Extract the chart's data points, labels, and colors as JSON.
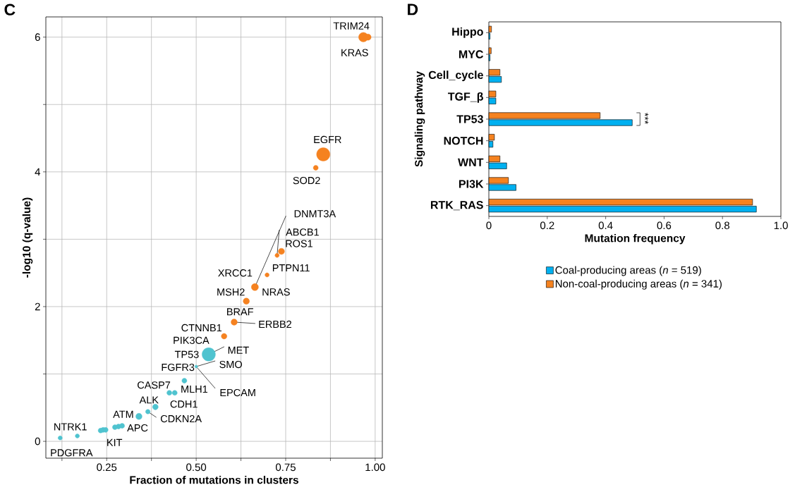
{
  "chart_data": [
    {
      "type": "bubble",
      "title": "C",
      "xlabel": "Fraction of mutations in clusters",
      "ylabel": "-log10 (q-value)",
      "xlim": [
        0.08,
        1.02
      ],
      "ylim": [
        -0.25,
        6.3
      ],
      "xticks": [
        {
          "value": 0.125,
          "label": null
        },
        0.25,
        {
          "value": 0.375,
          "label": null
        },
        {
          "value": 0.5,
          "label": "0.50"
        },
        {
          "value": 0.625,
          "label": null
        },
        0.75,
        {
          "value": 0.875,
          "label": null
        },
        {
          "value": 1,
          "label": "1.00"
        }
      ],
      "yticks": [
        0,
        {
          "value": 1,
          "label": null
        },
        2,
        {
          "value": 3,
          "label": null
        },
        4,
        {
          "value": 5,
          "label": null
        },
        6
      ],
      "grid": true,
      "series": [
        {
          "color": "#f58220",
          "x": [
            0.967,
            0.98,
            0.855,
            0.834,
            0.664,
            0.726,
            0.738,
            0.698,
            0.64,
            0.606,
            0.578
          ],
          "values": [
            6.0,
            6.0,
            4.26,
            4.06,
            2.29,
            2.76,
            2.82,
            2.47,
            2.08,
            1.77,
            1.56
          ],
          "sizes": [
            0.5,
            0.22,
            1,
            0.14,
            0.28,
            0.1,
            0.22,
            0.1,
            0.22,
            0.22,
            0.18
          ]
        },
        {
          "color": "#4fc3cf",
          "x": [
            0.535,
            0.5,
            0.425,
            0.467,
            0.44,
            0.386,
            0.365,
            0.34,
            0.283,
            0.24,
            0.168,
            0.12,
            0.273,
            0.293,
            0.233,
            0.247
          ],
          "values": [
            1.29,
            1.11,
            0.72,
            0.9,
            0.72,
            0.51,
            0.44,
            0.37,
            0.22,
            0.17,
            0.08,
            0.05,
            0.21,
            0.23,
            0.16,
            0.17
          ],
          "sizes": [
            1,
            0.044,
            0.14,
            0.14,
            0.14,
            0.18,
            0.12,
            0.22,
            0.14,
            0.14,
            0.1,
            0.1,
            0.14,
            0.14,
            0.14,
            0.14
          ]
        }
      ],
      "annotations": [
        {
          "text": "TRIM24",
          "x": 0.967,
          "y": 6.0
        },
        {
          "text": "KRAS",
          "x": 0.98,
          "y": 6.0
        },
        {
          "text": "EGFR",
          "x": 0.855,
          "y": 4.26
        },
        {
          "text": "SOD2",
          "x": 0.834,
          "y": 4.06
        },
        {
          "text": "DNMT3A",
          "x": 0.664,
          "y": 2.29
        },
        {
          "text": "ABCB1",
          "x": 0.726,
          "y": 2.76
        },
        {
          "text": "ROS1",
          "x": 0.738,
          "y": 2.82
        },
        {
          "text": "XRCC1",
          "x": 0.664,
          "y": 2.29
        },
        {
          "text": "PTPN11",
          "x": 0.698,
          "y": 2.47
        },
        {
          "text": "MSH2",
          "x": 0.64,
          "y": 2.08
        },
        {
          "text": "NRAS",
          "x": 0.664,
          "y": 2.29
        },
        {
          "text": "BRAF",
          "x": 0.64,
          "y": 2.08
        },
        {
          "text": "ERBB2",
          "x": 0.606,
          "y": 1.77
        },
        {
          "text": "CTNNB1",
          "x": 0.578,
          "y": 1.56
        },
        {
          "text": "PIK3CA",
          "x": 0.535,
          "y": 1.29
        },
        {
          "text": "TP53",
          "x": 0.535,
          "y": 1.29
        },
        {
          "text": "MET",
          "x": 0.535,
          "y": 1.29
        },
        {
          "text": "SMO",
          "x": 0.5,
          "y": 1.11
        },
        {
          "text": "FGFR3",
          "x": 0.5,
          "y": 1.11
        },
        {
          "text": "EPCAM",
          "x": 0.5,
          "y": 1.11
        },
        {
          "text": "CASP7",
          "x": 0.425,
          "y": 0.72
        },
        {
          "text": "MLH1",
          "x": 0.467,
          "y": 0.9
        },
        {
          "text": "CDH1",
          "x": 0.44,
          "y": 0.72
        },
        {
          "text": "ALK",
          "x": 0.386,
          "y": 0.51
        },
        {
          "text": "CDKN2A",
          "x": 0.365,
          "y": 0.44
        },
        {
          "text": "ATM",
          "x": 0.34,
          "y": 0.37
        },
        {
          "text": "APC",
          "x": 0.283,
          "y": 0.22
        },
        {
          "text": "KIT",
          "x": 0.24,
          "y": 0.17
        },
        {
          "text": "NTRK1",
          "x": 0.168,
          "y": 0.08
        },
        {
          "text": "PDGFRA",
          "x": 0.12,
          "y": 0.05
        }
      ]
    },
    {
      "type": "bar",
      "orientation": "horizontal",
      "title": "D",
      "xlabel": "Mutation frequency",
      "ylabel": "Signaling pathway",
      "categories": [
        "Hippo",
        "MYC",
        "Cell_cycle",
        "TGF_β",
        "TP53",
        "NOTCH",
        "WNT",
        "PI3K",
        "RTK_RAS"
      ],
      "xlim": [
        0,
        1
      ],
      "xticks": [
        0,
        0.2,
        0.4,
        0.6,
        0.8,
        {
          "value": 1,
          "label": "1.0"
        }
      ],
      "legend": "bottom",
      "series": [
        {
          "name": "Coal-producing areas (*n* = 519)",
          "color": "#00b0f0",
          "values": [
            0.004,
            0.004,
            0.043,
            0.024,
            0.491,
            0.014,
            0.061,
            0.093,
            0.916
          ]
        },
        {
          "name": "Non-coal-producing areas (*n* = 341)",
          "color": "#f5821f",
          "values": [
            0.009,
            0.008,
            0.038,
            0.024,
            0.381,
            0.019,
            0.038,
            0.067,
            0.903
          ]
        }
      ],
      "annotations": [
        "***"
      ]
    }
  ]
}
